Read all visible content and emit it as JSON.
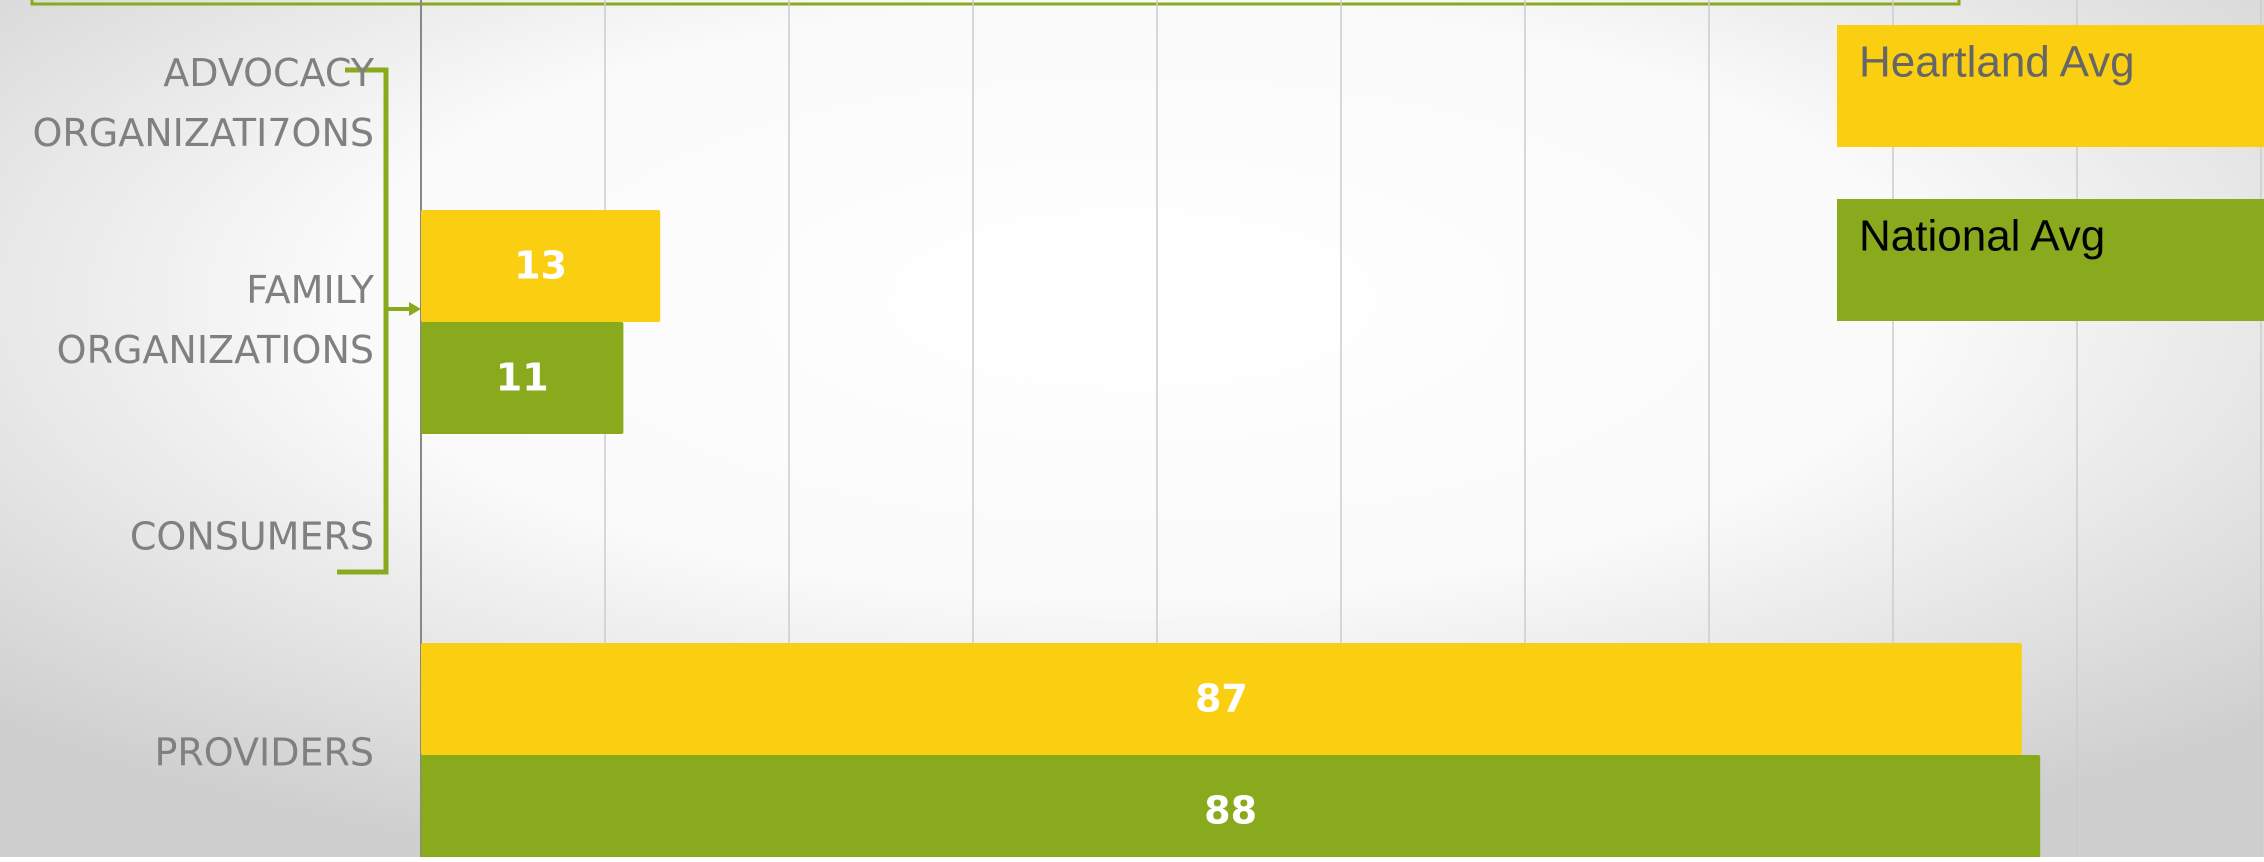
{
  "chart_data": {
    "type": "bar",
    "orientation": "horizontal",
    "categories": [
      "ADVOCACY ORGANIZATI7ONS",
      "FAMILY ORGANIZATIONS",
      "CONSUMERS",
      "PROVIDERS"
    ],
    "series": [
      {
        "name": "Heartland Avg",
        "color": "#facf12",
        "values": [
          null,
          13,
          null,
          87
        ]
      },
      {
        "name": "National Avg",
        "color": "#8aaa1e",
        "values": [
          null,
          11,
          null,
          88
        ]
      }
    ],
    "xlim": [
      0,
      100
    ],
    "xticks": [
      0,
      10,
      20,
      30,
      40,
      50,
      60,
      70,
      80,
      90,
      100
    ],
    "grid": true,
    "legend": "upper right"
  }
}
